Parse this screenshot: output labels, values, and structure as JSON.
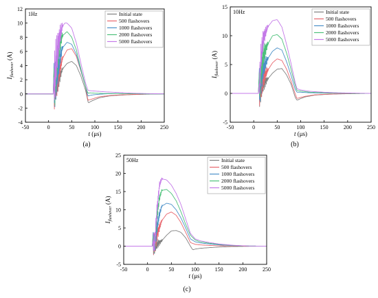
{
  "colors": {
    "Initial state": "#808080",
    "500 flashovers": "#e8666e",
    "1000 flashovers": "#4a90c8",
    "2000 flashovers": "#4cc07a",
    "5000 flashovers": "#c479e8"
  },
  "chart_data": [
    {
      "type": "line",
      "panel_label": "(a)",
      "annotation": "1Hz",
      "xlabel_var": "t",
      "xlabel_unit": " (μs)",
      "ylabel_var": "I",
      "ylabel_sub": "flashover",
      "ylabel_unit": " (A)",
      "xlim": [
        -50,
        250
      ],
      "ylim": [
        -4,
        12
      ],
      "xticks": [
        -50,
        0,
        50,
        100,
        150,
        200,
        250
      ],
      "yticks": [
        -4,
        -2,
        0,
        2,
        4,
        6,
        8,
        10,
        12
      ],
      "legend": "top-right",
      "series": [
        {
          "name": "Initial state",
          "noise": [
            -2,
            2.5
          ],
          "x": [
            -50,
            12,
            15,
            20,
            25,
            30,
            40,
            50,
            60,
            70,
            80,
            86,
            90,
            100,
            110,
            130,
            150,
            180,
            210,
            250
          ],
          "y": [
            0,
            0,
            1,
            1.2,
            2.5,
            3.5,
            4.3,
            4.6,
            4.0,
            2.5,
            0.5,
            -1.3,
            -1.1,
            -0.8,
            -0.55,
            -0.3,
            -0.2,
            -0.1,
            -0.05,
            0
          ]
        },
        {
          "name": "500 flashovers",
          "noise": [
            -3,
            4
          ],
          "x": [
            -50,
            12,
            15,
            20,
            25,
            30,
            40,
            50,
            60,
            70,
            80,
            85,
            90,
            100,
            110,
            130,
            150,
            180,
            210,
            250
          ],
          "y": [
            0,
            0,
            1,
            2.0,
            3.5,
            5.0,
            6.2,
            6.4,
            5.3,
            3.2,
            1.0,
            -0.9,
            -0.8,
            -0.6,
            -0.4,
            -0.25,
            -0.15,
            -0.08,
            -0.03,
            0
          ]
        },
        {
          "name": "1000 flashovers",
          "noise": [
            -3.2,
            4.5
          ],
          "x": [
            -50,
            12,
            15,
            20,
            25,
            30,
            40,
            50,
            60,
            70,
            80,
            85,
            90,
            100,
            120,
            150,
            180,
            210,
            250
          ],
          "y": [
            0,
            0,
            1.5,
            3.0,
            5.0,
            6.5,
            7.3,
            7.0,
            5.6,
            3.3,
            1.0,
            -0.3,
            -0.2,
            -0.1,
            0,
            0.05,
            0.02,
            0,
            0
          ]
        },
        {
          "name": "2000 flashovers",
          "noise": [
            -3,
            5
          ],
          "x": [
            -50,
            12,
            15,
            20,
            25,
            30,
            40,
            50,
            60,
            70,
            80,
            85,
            90,
            100,
            120,
            150,
            180,
            210,
            250
          ],
          "y": [
            0,
            0,
            2.0,
            5.0,
            7.0,
            8.2,
            8.8,
            8.0,
            6.2,
            3.5,
            1.0,
            0.1,
            0.15,
            0.1,
            0.05,
            0.05,
            0.02,
            0,
            0
          ]
        },
        {
          "name": "5000 flashovers",
          "noise": [
            -3,
            5.5
          ],
          "x": [
            -50,
            12,
            15,
            20,
            25,
            30,
            35,
            40,
            50,
            60,
            70,
            80,
            85,
            90,
            100,
            120,
            150,
            180,
            210,
            250
          ],
          "y": [
            0,
            0,
            3.0,
            6.0,
            8.0,
            9.5,
            10.0,
            10.0,
            9.3,
            7.2,
            4.3,
            1.5,
            0.5,
            0.45,
            0.4,
            0.3,
            0.2,
            0.1,
            0.05,
            0
          ]
        }
      ]
    },
    {
      "type": "line",
      "panel_label": "(b)",
      "annotation": "10Hz",
      "xlabel_var": "t",
      "xlabel_unit": " (μs)",
      "ylabel_var": "I",
      "ylabel_sub": "flashover",
      "ylabel_unit": " (A)",
      "xlim": [
        -50,
        250
      ],
      "ylim": [
        -5,
        15
      ],
      "xticks": [
        -50,
        0,
        50,
        100,
        150,
        200,
        250
      ],
      "yticks": [
        -5,
        0,
        5,
        10,
        15
      ],
      "legend": "top-right",
      "series": [
        {
          "name": "Initial state",
          "noise": [
            -2.5,
            3
          ],
          "x": [
            -50,
            12,
            15,
            20,
            30,
            40,
            50,
            60,
            70,
            80,
            88,
            92,
            100,
            110,
            130,
            150,
            180,
            210,
            250
          ],
          "y": [
            0,
            0,
            0.5,
            1.5,
            2.5,
            3.5,
            4.2,
            4.3,
            3.2,
            1.5,
            -0.6,
            -1.2,
            -0.9,
            -0.6,
            -0.3,
            -0.2,
            -0.1,
            -0.05,
            0
          ]
        },
        {
          "name": "500 flashovers",
          "noise": [
            -3,
            4
          ],
          "x": [
            -50,
            12,
            15,
            20,
            30,
            40,
            50,
            60,
            70,
            80,
            88,
            92,
            100,
            110,
            130,
            150,
            180,
            210,
            250
          ],
          "y": [
            0,
            0,
            1,
            2.5,
            4.0,
            5.3,
            6.0,
            5.7,
            4.2,
            2.0,
            0,
            -0.9,
            -0.7,
            -0.5,
            -0.25,
            -0.15,
            -0.08,
            -0.03,
            0
          ]
        },
        {
          "name": "1000 flashovers",
          "noise": [
            -3,
            4.5
          ],
          "x": [
            -50,
            12,
            15,
            20,
            30,
            40,
            50,
            60,
            70,
            80,
            88,
            92,
            100,
            120,
            150,
            180,
            210,
            250
          ],
          "y": [
            0,
            0,
            2,
            4.0,
            6.0,
            7.3,
            7.9,
            7.5,
            5.5,
            3.0,
            0.8,
            0.2,
            0.2,
            0.1,
            0.05,
            0.02,
            0,
            0
          ]
        },
        {
          "name": "2000 flashovers",
          "noise": [
            -2.5,
            5
          ],
          "x": [
            -50,
            12,
            15,
            20,
            30,
            40,
            50,
            60,
            70,
            80,
            88,
            92,
            100,
            120,
            150,
            180,
            210,
            250
          ],
          "y": [
            0,
            0,
            3,
            6.0,
            8.5,
            10.0,
            10.2,
            9.4,
            7.0,
            4.0,
            1.5,
            0.5,
            0.4,
            0.2,
            0.1,
            0.05,
            0,
            0
          ]
        },
        {
          "name": "5000 flashovers",
          "noise": [
            -2,
            4
          ],
          "x": [
            -50,
            12,
            15,
            20,
            30,
            40,
            50,
            60,
            70,
            80,
            88,
            92,
            100,
            120,
            150,
            180,
            210,
            250
          ],
          "y": [
            0,
            0,
            5,
            9.0,
            11.5,
            12.6,
            12.8,
            11.5,
            8.5,
            5.0,
            2.0,
            0.8,
            0.6,
            0.35,
            0.2,
            0.1,
            0.05,
            0
          ]
        }
      ]
    },
    {
      "type": "line",
      "panel_label": "(c)",
      "annotation": "50Hz",
      "xlabel_var": "t",
      "xlabel_unit": " (μs)",
      "ylabel_var": "I",
      "ylabel_sub": "flashover",
      "ylabel_unit": " (A)",
      "xlim": [
        -50,
        250
      ],
      "ylim": [
        -5,
        25
      ],
      "xticks": [
        -50,
        0,
        50,
        100,
        150,
        200,
        250
      ],
      "yticks": [
        -5,
        0,
        5,
        10,
        15,
        20,
        25
      ],
      "legend": "top-right",
      "series": [
        {
          "name": "Initial state",
          "noise": [
            -2.5,
            2.5
          ],
          "x": [
            -50,
            15,
            20,
            30,
            40,
            50,
            60,
            70,
            80,
            90,
            95,
            100,
            110,
            130,
            150,
            180,
            210,
            250
          ],
          "y": [
            0,
            0,
            0.5,
            1.5,
            3.0,
            4.2,
            4.3,
            3.8,
            2.3,
            0,
            -1.0,
            -0.8,
            -0.6,
            -0.4,
            -0.25,
            -0.1,
            -0.05,
            0
          ]
        },
        {
          "name": "500 flashovers",
          "noise": [
            -3,
            4
          ],
          "x": [
            -50,
            15,
            20,
            25,
            30,
            40,
            50,
            60,
            70,
            80,
            90,
            100,
            110,
            130,
            150,
            180,
            210,
            250
          ],
          "y": [
            0,
            0,
            3.0,
            5.0,
            7.0,
            8.8,
            9.4,
            8.5,
            6.5,
            3.8,
            1.0,
            0.5,
            0.35,
            0.2,
            0.1,
            0.05,
            0.02,
            0
          ]
        },
        {
          "name": "1000 flashovers",
          "noise": [
            -2.5,
            4
          ],
          "x": [
            -50,
            15,
            20,
            25,
            30,
            40,
            50,
            60,
            70,
            80,
            90,
            100,
            110,
            130,
            150,
            180,
            210,
            250
          ],
          "y": [
            0,
            0,
            5.0,
            8.5,
            11.0,
            11.8,
            11.5,
            10.0,
            7.8,
            5.0,
            2.0,
            1.2,
            0.9,
            0.6,
            0.35,
            0.15,
            0.05,
            0
          ]
        },
        {
          "name": "2000 flashovers",
          "noise": [
            -2,
            4
          ],
          "x": [
            -50,
            15,
            20,
            25,
            30,
            40,
            50,
            60,
            70,
            80,
            90,
            100,
            110,
            130,
            150,
            180,
            210,
            250
          ],
          "y": [
            0,
            0,
            8.0,
            13.0,
            15.3,
            15.6,
            14.5,
            12.5,
            9.5,
            6.0,
            3.0,
            1.7,
            1.2,
            0.8,
            0.5,
            0.2,
            0.05,
            0
          ]
        },
        {
          "name": "5000 flashovers",
          "noise": [
            -2,
            4
          ],
          "x": [
            -50,
            15,
            20,
            25,
            30,
            40,
            50,
            60,
            70,
            80,
            90,
            100,
            110,
            130,
            150,
            180,
            210,
            250
          ],
          "y": [
            0,
            0,
            10.0,
            16.5,
            18.5,
            18.2,
            16.8,
            14.5,
            11.5,
            7.5,
            3.5,
            2.0,
            1.5,
            1.0,
            0.6,
            0.25,
            0.05,
            0
          ]
        }
      ]
    }
  ]
}
